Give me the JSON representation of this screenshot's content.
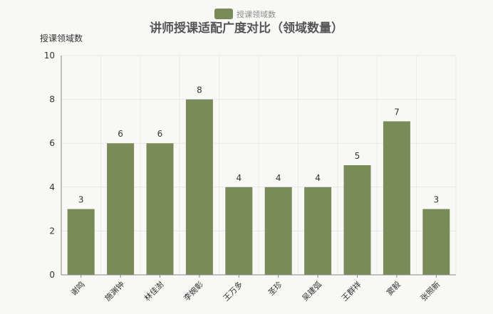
{
  "chart_data": {
    "type": "bar",
    "title": "讲师授课适配广度对比（领域数量）",
    "ylabel": "授课领域数",
    "xlabel": "",
    "legend": {
      "entries": [
        "授课领域数"
      ],
      "position": "top-center"
    },
    "categories": [
      "谢鸣",
      "施渊钟",
      "林佳澍",
      "李婉彰",
      "王万多",
      "圣珍",
      "吴建弧",
      "王群祥",
      "窦毅",
      "张照新"
    ],
    "series": [
      {
        "name": "授课领域数",
        "values": [
          3,
          6,
          6,
          8,
          4,
          4,
          4,
          5,
          7,
          3
        ],
        "color": "#7a8b5a"
      }
    ],
    "ylim": [
      0,
      10
    ],
    "yticks": [
      0,
      2,
      4,
      6,
      8,
      10
    ],
    "grid": true,
    "data_labels": true
  }
}
